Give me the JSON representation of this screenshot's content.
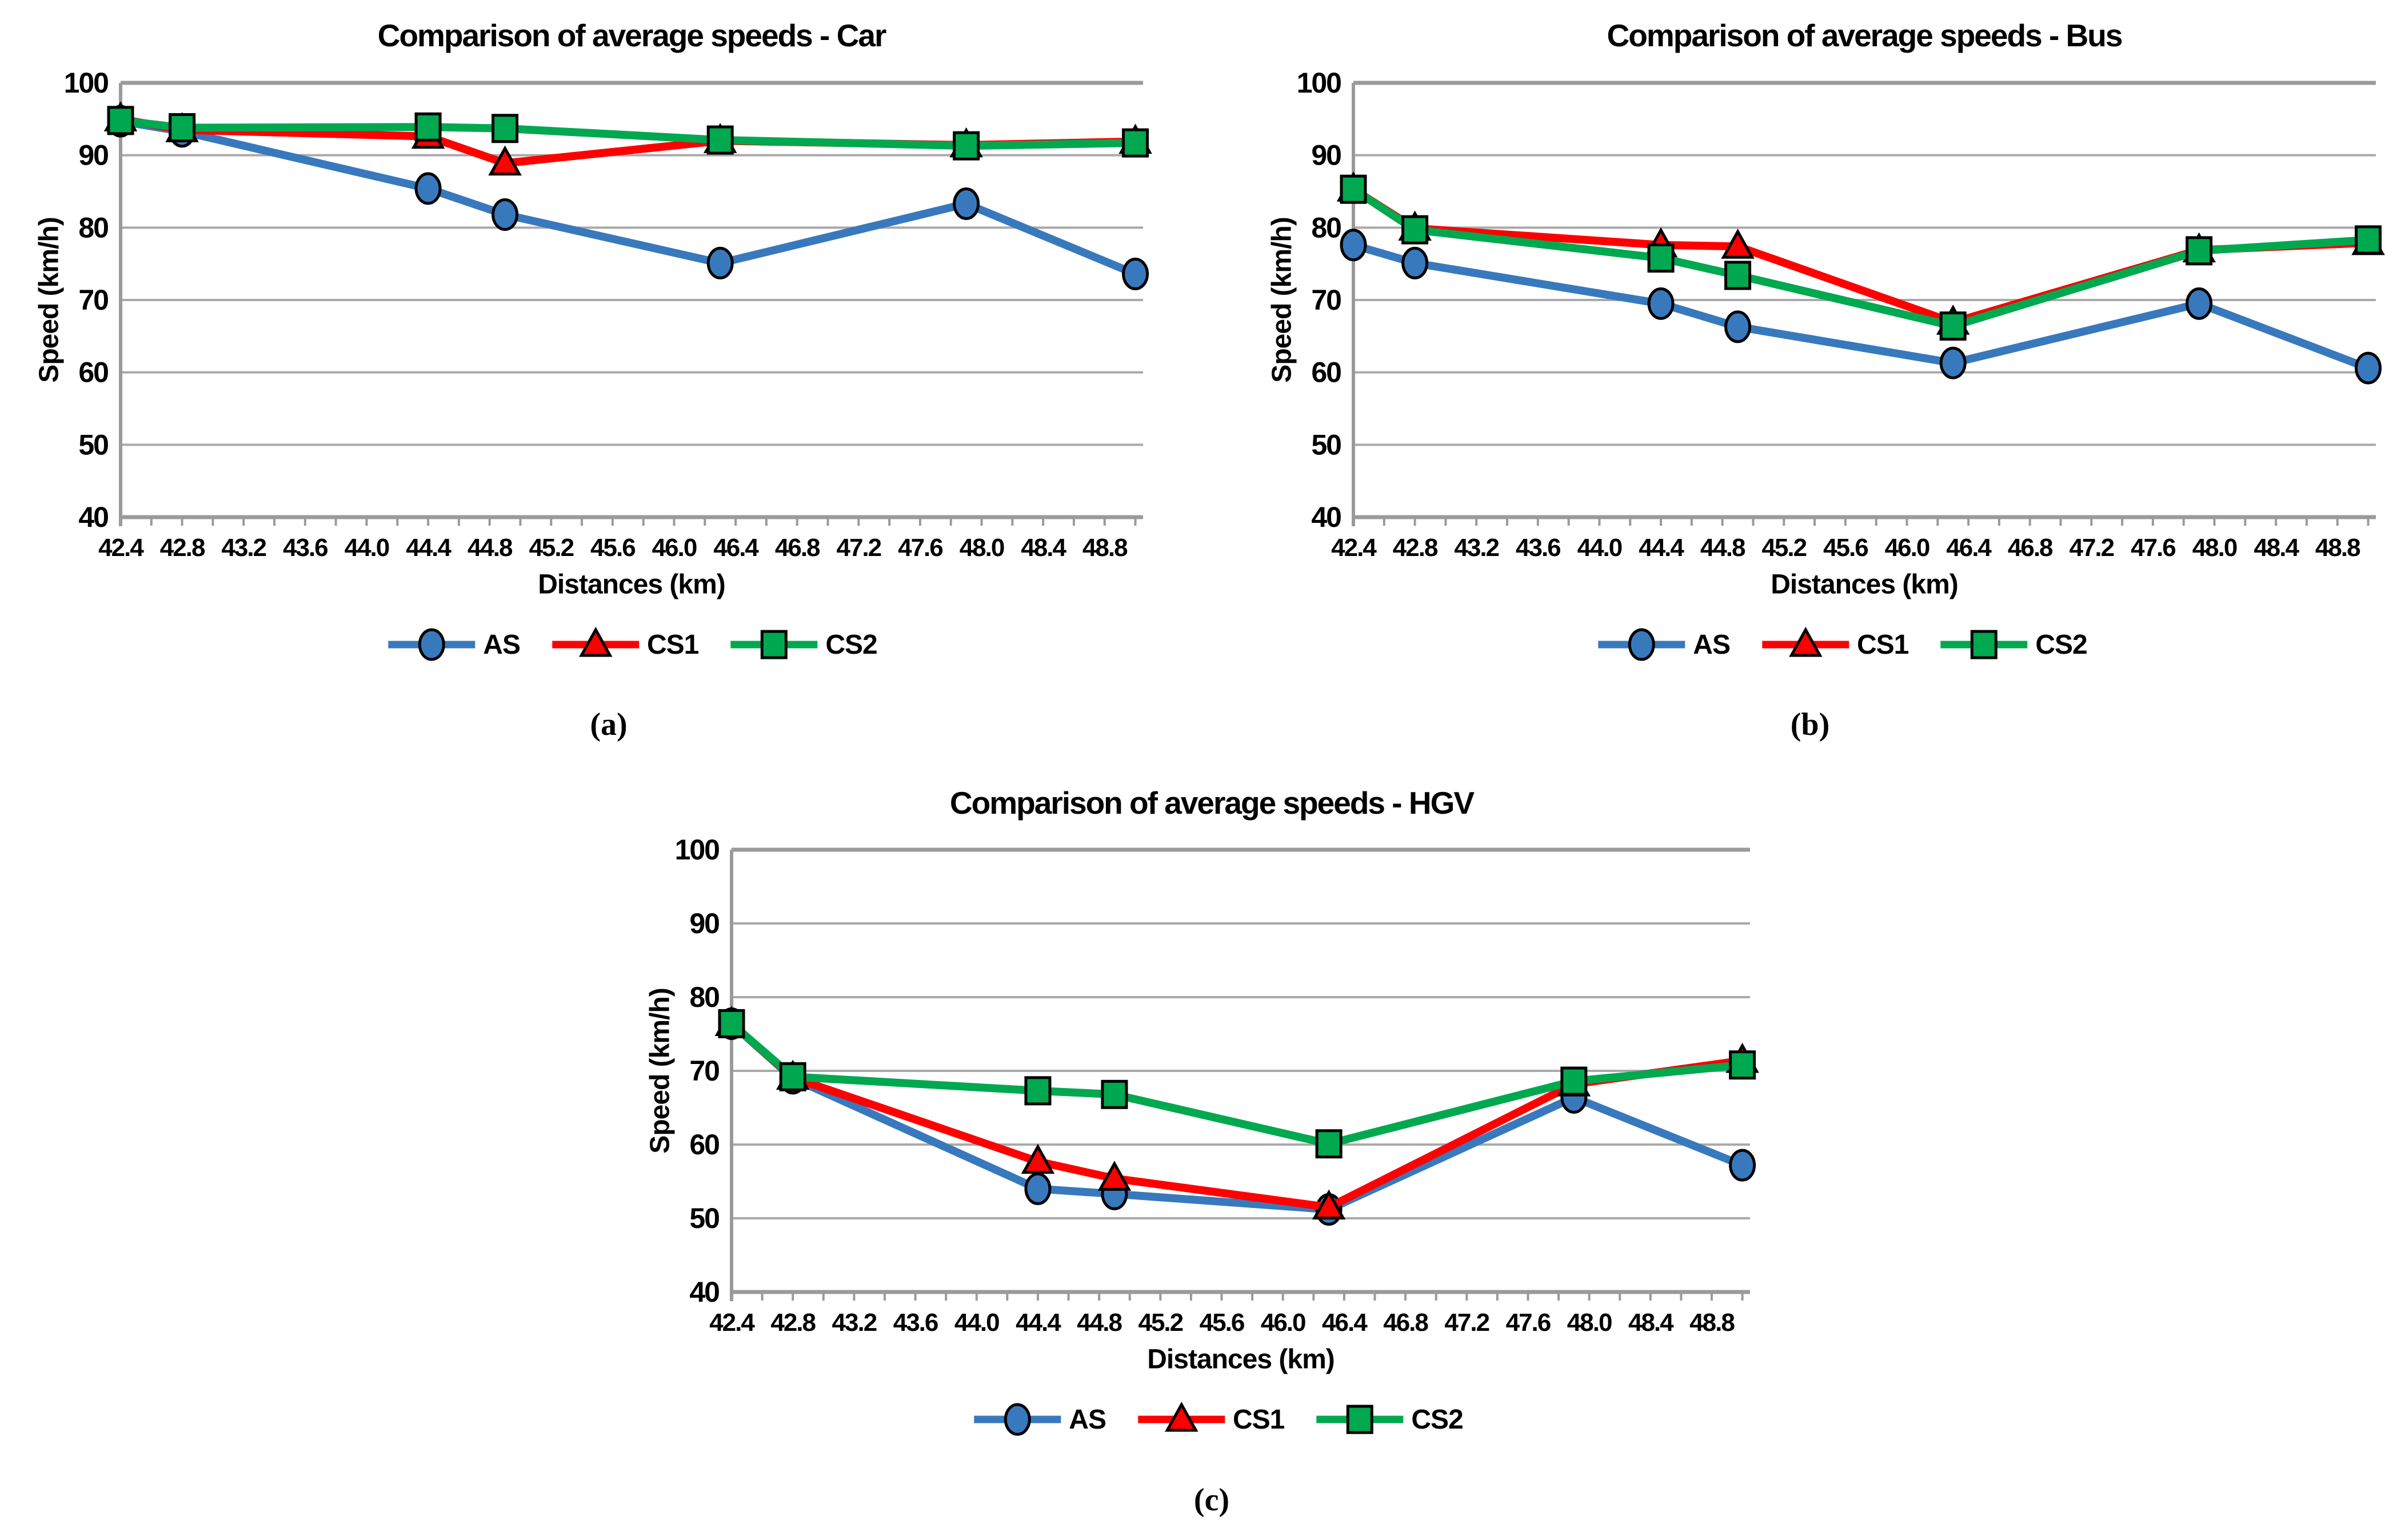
{
  "colors": {
    "AS": "#3879BD",
    "CS1": "#FE0000",
    "CS2": "#00A84F",
    "gridline": "#A9A9A9",
    "axis": "#9A9A9A",
    "text": "#000000"
  },
  "axes": {
    "xlabel": "Distances (km)",
    "ylabel": "Speed (km/h)",
    "x_tick_labels": [
      "42.4",
      "42.8",
      "43.2",
      "43.6",
      "44.0",
      "44.4",
      "44.8",
      "45.2",
      "45.6",
      "46.0",
      "46.4",
      "46.8",
      "47.2",
      "47.6",
      "48.0",
      "48.4",
      "48.8"
    ],
    "x_tick_values": [
      42.4,
      42.8,
      43.2,
      43.6,
      44.0,
      44.4,
      44.8,
      45.2,
      45.6,
      46.0,
      46.4,
      46.8,
      47.2,
      47.6,
      48.0,
      48.4,
      48.8
    ],
    "minor_tick_step": 0.2,
    "y_ticks": [
      40,
      50,
      60,
      70,
      80,
      90,
      100
    ],
    "xlim": [
      42.4,
      49.05
    ],
    "ylim": [
      40,
      100
    ],
    "grid": true,
    "legend_position": "bottom"
  },
  "chart_data": [
    {
      "type": "line",
      "title": "Comparison of average speeds - Car",
      "caption": "(a)",
      "xlabel": "Distances (km)",
      "ylabel": "Speed (km/h)",
      "x": [
        42.4,
        42.8,
        44.4,
        44.9,
        46.3,
        47.9,
        49.0
      ],
      "xlim": [
        42.4,
        49.05
      ],
      "ylim": [
        40,
        100
      ],
      "series": [
        {
          "name": "AS",
          "marker": "circle",
          "color": "#3879BD",
          "values": [
            94.7,
            93.3,
            85.4,
            81.8,
            75.1,
            83.3,
            73.6
          ]
        },
        {
          "name": "CS1",
          "marker": "triangle",
          "color": "#FE0000",
          "values": [
            95.0,
            93.5,
            92.6,
            88.9,
            92.0,
            91.4,
            91.9
          ]
        },
        {
          "name": "CS2",
          "marker": "square",
          "color": "#00A84F",
          "values": [
            94.8,
            93.8,
            93.9,
            93.7,
            92.1,
            91.3,
            91.7
          ]
        }
      ]
    },
    {
      "type": "line",
      "title": "Comparison of average speeds - Bus",
      "caption": "(b)",
      "xlabel": "Distances (km)",
      "ylabel": "Speed (km/h)",
      "x": [
        42.4,
        42.8,
        44.4,
        44.9,
        46.3,
        47.9,
        49.0
      ],
      "xlim": [
        42.4,
        49.05
      ],
      "ylim": [
        40,
        100
      ],
      "series": [
        {
          "name": "AS",
          "marker": "circle",
          "color": "#3879BD",
          "values": [
            77.6,
            75.1,
            69.5,
            66.3,
            61.3,
            69.5,
            60.6
          ]
        },
        {
          "name": "CS1",
          "marker": "triangle",
          "color": "#FE0000",
          "values": [
            85.3,
            79.9,
            77.6,
            77.4,
            66.9,
            76.9,
            77.9
          ]
        },
        {
          "name": "CS2",
          "marker": "square",
          "color": "#00A84F",
          "values": [
            85.3,
            79.7,
            75.8,
            73.4,
            66.4,
            76.8,
            78.3
          ]
        }
      ]
    },
    {
      "type": "line",
      "title": "Comparison of average speeds - HGV",
      "caption": "(c)",
      "xlabel": "Distances (km)",
      "ylabel": "Speed (km/h)",
      "x": [
        42.4,
        42.8,
        44.4,
        44.9,
        46.3,
        47.9,
        49.0
      ],
      "xlim": [
        42.4,
        49.05
      ],
      "ylim": [
        40,
        100
      ],
      "series": [
        {
          "name": "AS",
          "marker": "circle",
          "color": "#3879BD",
          "values": [
            76.4,
            69.0,
            54.0,
            53.3,
            51.2,
            66.4,
            57.2
          ]
        },
        {
          "name": "CS1",
          "marker": "triangle",
          "color": "#FE0000",
          "values": [
            76.4,
            69.1,
            57.7,
            55.4,
            51.5,
            68.2,
            71.4
          ]
        },
        {
          "name": "CS2",
          "marker": "square",
          "color": "#00A84F",
          "values": [
            76.4,
            69.2,
            67.3,
            66.8,
            60.1,
            68.6,
            70.8
          ]
        }
      ]
    }
  ]
}
